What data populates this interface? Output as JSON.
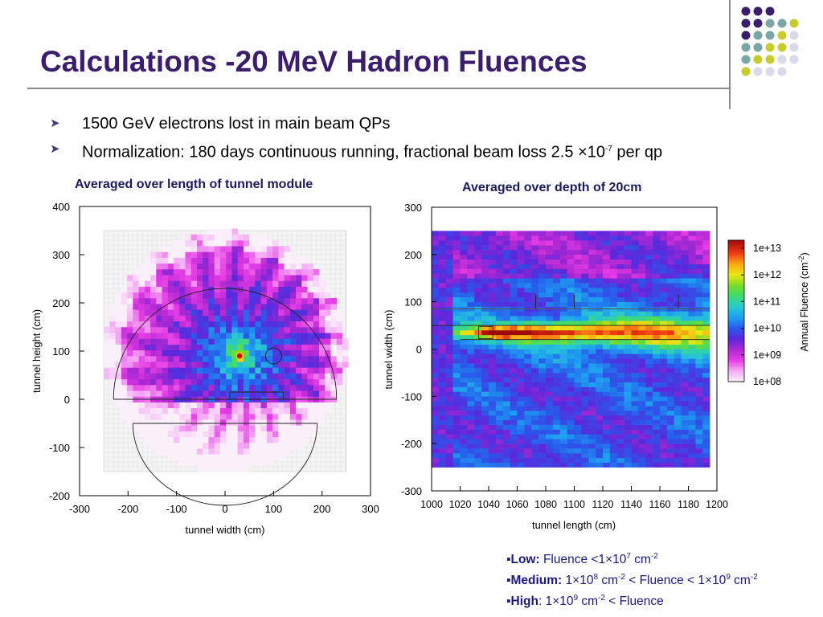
{
  "slide": {
    "title": "Calculations -20 MeV Hadron Fluences",
    "bullets": [
      {
        "text": "1500 GeV electrons lost in main beam QPs"
      },
      {
        "text": "Normalization: 180 days continuous running, fractional beam loss 2.5 ",
        "times": "×",
        "base": "10",
        "exp": "-7",
        "tail": " per qp"
      }
    ],
    "decor_dot_colors": [
      "#3b1d6e",
      "#7aa7a5",
      "#c8cc2a",
      "#d9d9ec"
    ]
  },
  "left_caption": "Averaged over length of tunnel module",
  "right_caption": "Averaged over depth of 20cm",
  "fluence_legend": {
    "low": {
      "label": "Low:",
      "text1": " Fluence <1",
      "times": "×",
      "base": "10",
      "exp1": "7",
      "unit": " cm",
      "exp2": "-2"
    },
    "medium": {
      "label": "Medium:",
      "a": " 1",
      "times": "×",
      "base": "10",
      "exp_a": "8",
      "unit": " cm",
      "neg2": "-2",
      "mid": " < Fluence < 1",
      "exp_b": "9",
      "unit2": " cm",
      "neg2b": "-2"
    },
    "high": {
      "label": "High",
      "colon": ":",
      "a": "  1",
      "times": "×",
      "base": "10",
      "exp_a": "9",
      "unit": " cm",
      "neg2": "-2",
      "tail": " < Fluence"
    }
  },
  "chart_data": [
    {
      "type": "heatmap",
      "title": "Averaged over length of tunnel module",
      "xlabel": "tunnel width (cm)",
      "ylabel": "tunnel height (cm)",
      "xlim": [
        -300,
        300
      ],
      "ylim": [
        -200,
        400
      ],
      "xticks": [
        "-300",
        "-200",
        "-100",
        "0",
        "100",
        "200",
        "300"
      ],
      "yticks": [
        "400",
        "300",
        "200",
        "100",
        "0",
        "-100",
        "-200"
      ],
      "hot_spot": {
        "x": 30,
        "y": 90
      },
      "shading": {
        "colormap": "annual-fluence",
        "log10_min": 8,
        "log10_max": 13
      },
      "note": "tunnel cross-section, fluence peaked at beam position"
    },
    {
      "type": "heatmap",
      "title": "Averaged over depth of 20cm",
      "xlabel": "tunnel length (cm)",
      "ylabel": "tunnel width (cm)",
      "xlim": [
        1000,
        1200
      ],
      "ylim": [
        -300,
        300
      ],
      "xticks": [
        "1000",
        "1020",
        "1040",
        "1060",
        "1080",
        "1100",
        "1120",
        "1140",
        "1160",
        "1180",
        "1200"
      ],
      "yticks": [
        "300",
        "200",
        "100",
        "0",
        "-100",
        "-200",
        "-300"
      ],
      "hot_spot": {
        "x": 1040,
        "y": 35
      },
      "colorbar": {
        "label": "Annual Fluence (cm",
        "label_sup": "-2",
        "label_close": ")",
        "ticks": [
          "1e+13",
          "1e+12",
          "1e+11",
          "1e+10",
          "1e+09",
          "1e+08"
        ],
        "log10_min": 8,
        "log10_max": 13.3
      }
    }
  ]
}
